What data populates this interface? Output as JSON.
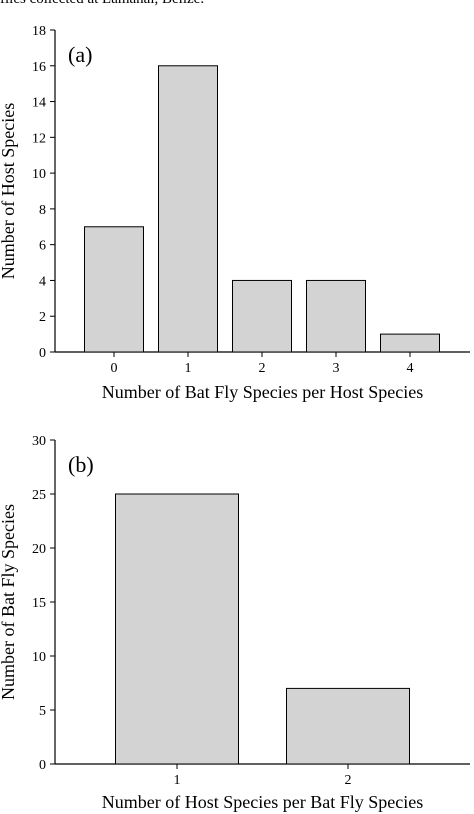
{
  "caption": "flies collected at Lamanai, Belize.",
  "chart_data": [
    {
      "type": "bar",
      "panel_label": "(a)",
      "categories": [
        "0",
        "1",
        "2",
        "3",
        "4"
      ],
      "values": [
        7,
        16,
        4,
        4,
        1
      ],
      "xlabel": "Number of Bat Fly Species per Host Species",
      "ylabel": "Number of Host Species",
      "ylim": [
        0,
        18
      ],
      "yticks": [
        0,
        2,
        4,
        6,
        8,
        10,
        12,
        14,
        16,
        18
      ],
      "grid": false,
      "bar_color": "#d3d3d3"
    },
    {
      "type": "bar",
      "panel_label": "(b)",
      "categories": [
        "1",
        "2"
      ],
      "values": [
        25,
        7
      ],
      "xlabel": "Number of Host Species per Bat Fly Species",
      "ylabel": "Number of Bat Fly Species",
      "ylim": [
        0,
        30
      ],
      "yticks": [
        0,
        5,
        10,
        15,
        20,
        25,
        30
      ],
      "grid": false,
      "bar_color": "#d3d3d3"
    }
  ]
}
